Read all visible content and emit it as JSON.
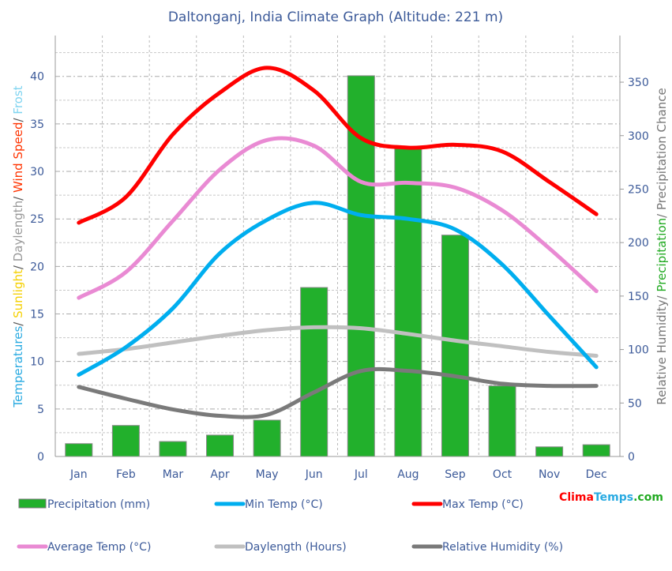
{
  "chart_data": {
    "type": "bar+line",
    "title": "Daltonganj, India Climate Graph (Altitude: 221 m)",
    "categories": [
      "Jan",
      "Feb",
      "Mar",
      "Apr",
      "May",
      "Jun",
      "Jul",
      "Aug",
      "Sep",
      "Oct",
      "Nov",
      "Dec"
    ],
    "left_axis": {
      "label_parts": [
        {
          "text": "Temperatures",
          "color": "#29aae1"
        },
        {
          "text": "/ ",
          "color": "#555555"
        },
        {
          "text": "Sunlight",
          "color": "#f5d000"
        },
        {
          "text": "/ ",
          "color": "#555555"
        },
        {
          "text": "Daylength",
          "color": "#999999"
        },
        {
          "text": "/ ",
          "color": "#555555"
        },
        {
          "text": "Wind Speed",
          "color": "#ff3300"
        },
        {
          "text": "/ ",
          "color": "#555555"
        },
        {
          "text": "Frost",
          "color": "#7fd4f0"
        }
      ],
      "ylim": [
        0,
        44.3
      ],
      "ticks": [
        0,
        5,
        10,
        15,
        20,
        25,
        30,
        35,
        40
      ]
    },
    "right_axis": {
      "label_parts": [
        {
          "text": "Relative Humidity/ ",
          "color": "#777777"
        },
        {
          "text": "Precipitation",
          "color": "#22aa22"
        },
        {
          "text": "/ Precipitation Chance",
          "color": "#777777"
        }
      ],
      "ylim": [
        0,
        393.6
      ],
      "ticks": [
        0,
        50,
        100,
        150,
        200,
        250,
        300,
        350
      ]
    },
    "grid": true,
    "legend_placement": "bottom",
    "series": [
      {
        "name": "Precipitation (mm)",
        "type": "bar",
        "axis": "right",
        "color": "#22b02c",
        "values": [
          12,
          29,
          14,
          20,
          34,
          158,
          356,
          288,
          207,
          66,
          9,
          11
        ]
      },
      {
        "name": "Min Temp (°C)",
        "type": "line",
        "axis": "left",
        "color": "#00aeef",
        "values": [
          8.6,
          11.5,
          15.6,
          21.4,
          24.9,
          26.7,
          25.4,
          25.0,
          23.9,
          20.2,
          14.8,
          9.4
        ]
      },
      {
        "name": "Max Temp (°C)",
        "type": "line",
        "axis": "left",
        "color": "#ff0000",
        "values": [
          24.6,
          27.3,
          33.9,
          38.3,
          40.9,
          38.5,
          33.5,
          32.5,
          32.8,
          32.1,
          28.9,
          25.5
        ]
      },
      {
        "name": "Average Temp (°C)",
        "type": "line",
        "axis": "left",
        "color": "#e98ad3",
        "values": [
          16.7,
          19.4,
          24.8,
          30.2,
          33.3,
          32.7,
          28.9,
          28.8,
          28.3,
          25.9,
          21.9,
          17.4
        ]
      },
      {
        "name": "Daylength (Hours)",
        "type": "line",
        "axis": "left",
        "color": "#c0c0c0",
        "values": [
          10.8,
          11.3,
          12.0,
          12.7,
          13.3,
          13.6,
          13.5,
          12.9,
          12.2,
          11.6,
          11.0,
          10.6
        ]
      },
      {
        "name": "Relative Humidity (%)",
        "type": "line",
        "axis": "right",
        "color": "#7a7a7a",
        "values": [
          65,
          54,
          44,
          38,
          39,
          60,
          80,
          80,
          75,
          68,
          66,
          66
        ]
      }
    ]
  },
  "brand": {
    "parts": [
      {
        "text": "Clima",
        "color": "#ff0000"
      },
      {
        "text": "Temps",
        "color": "#29aae1"
      },
      {
        "text": ".com",
        "color": "#22aa22"
      }
    ]
  }
}
